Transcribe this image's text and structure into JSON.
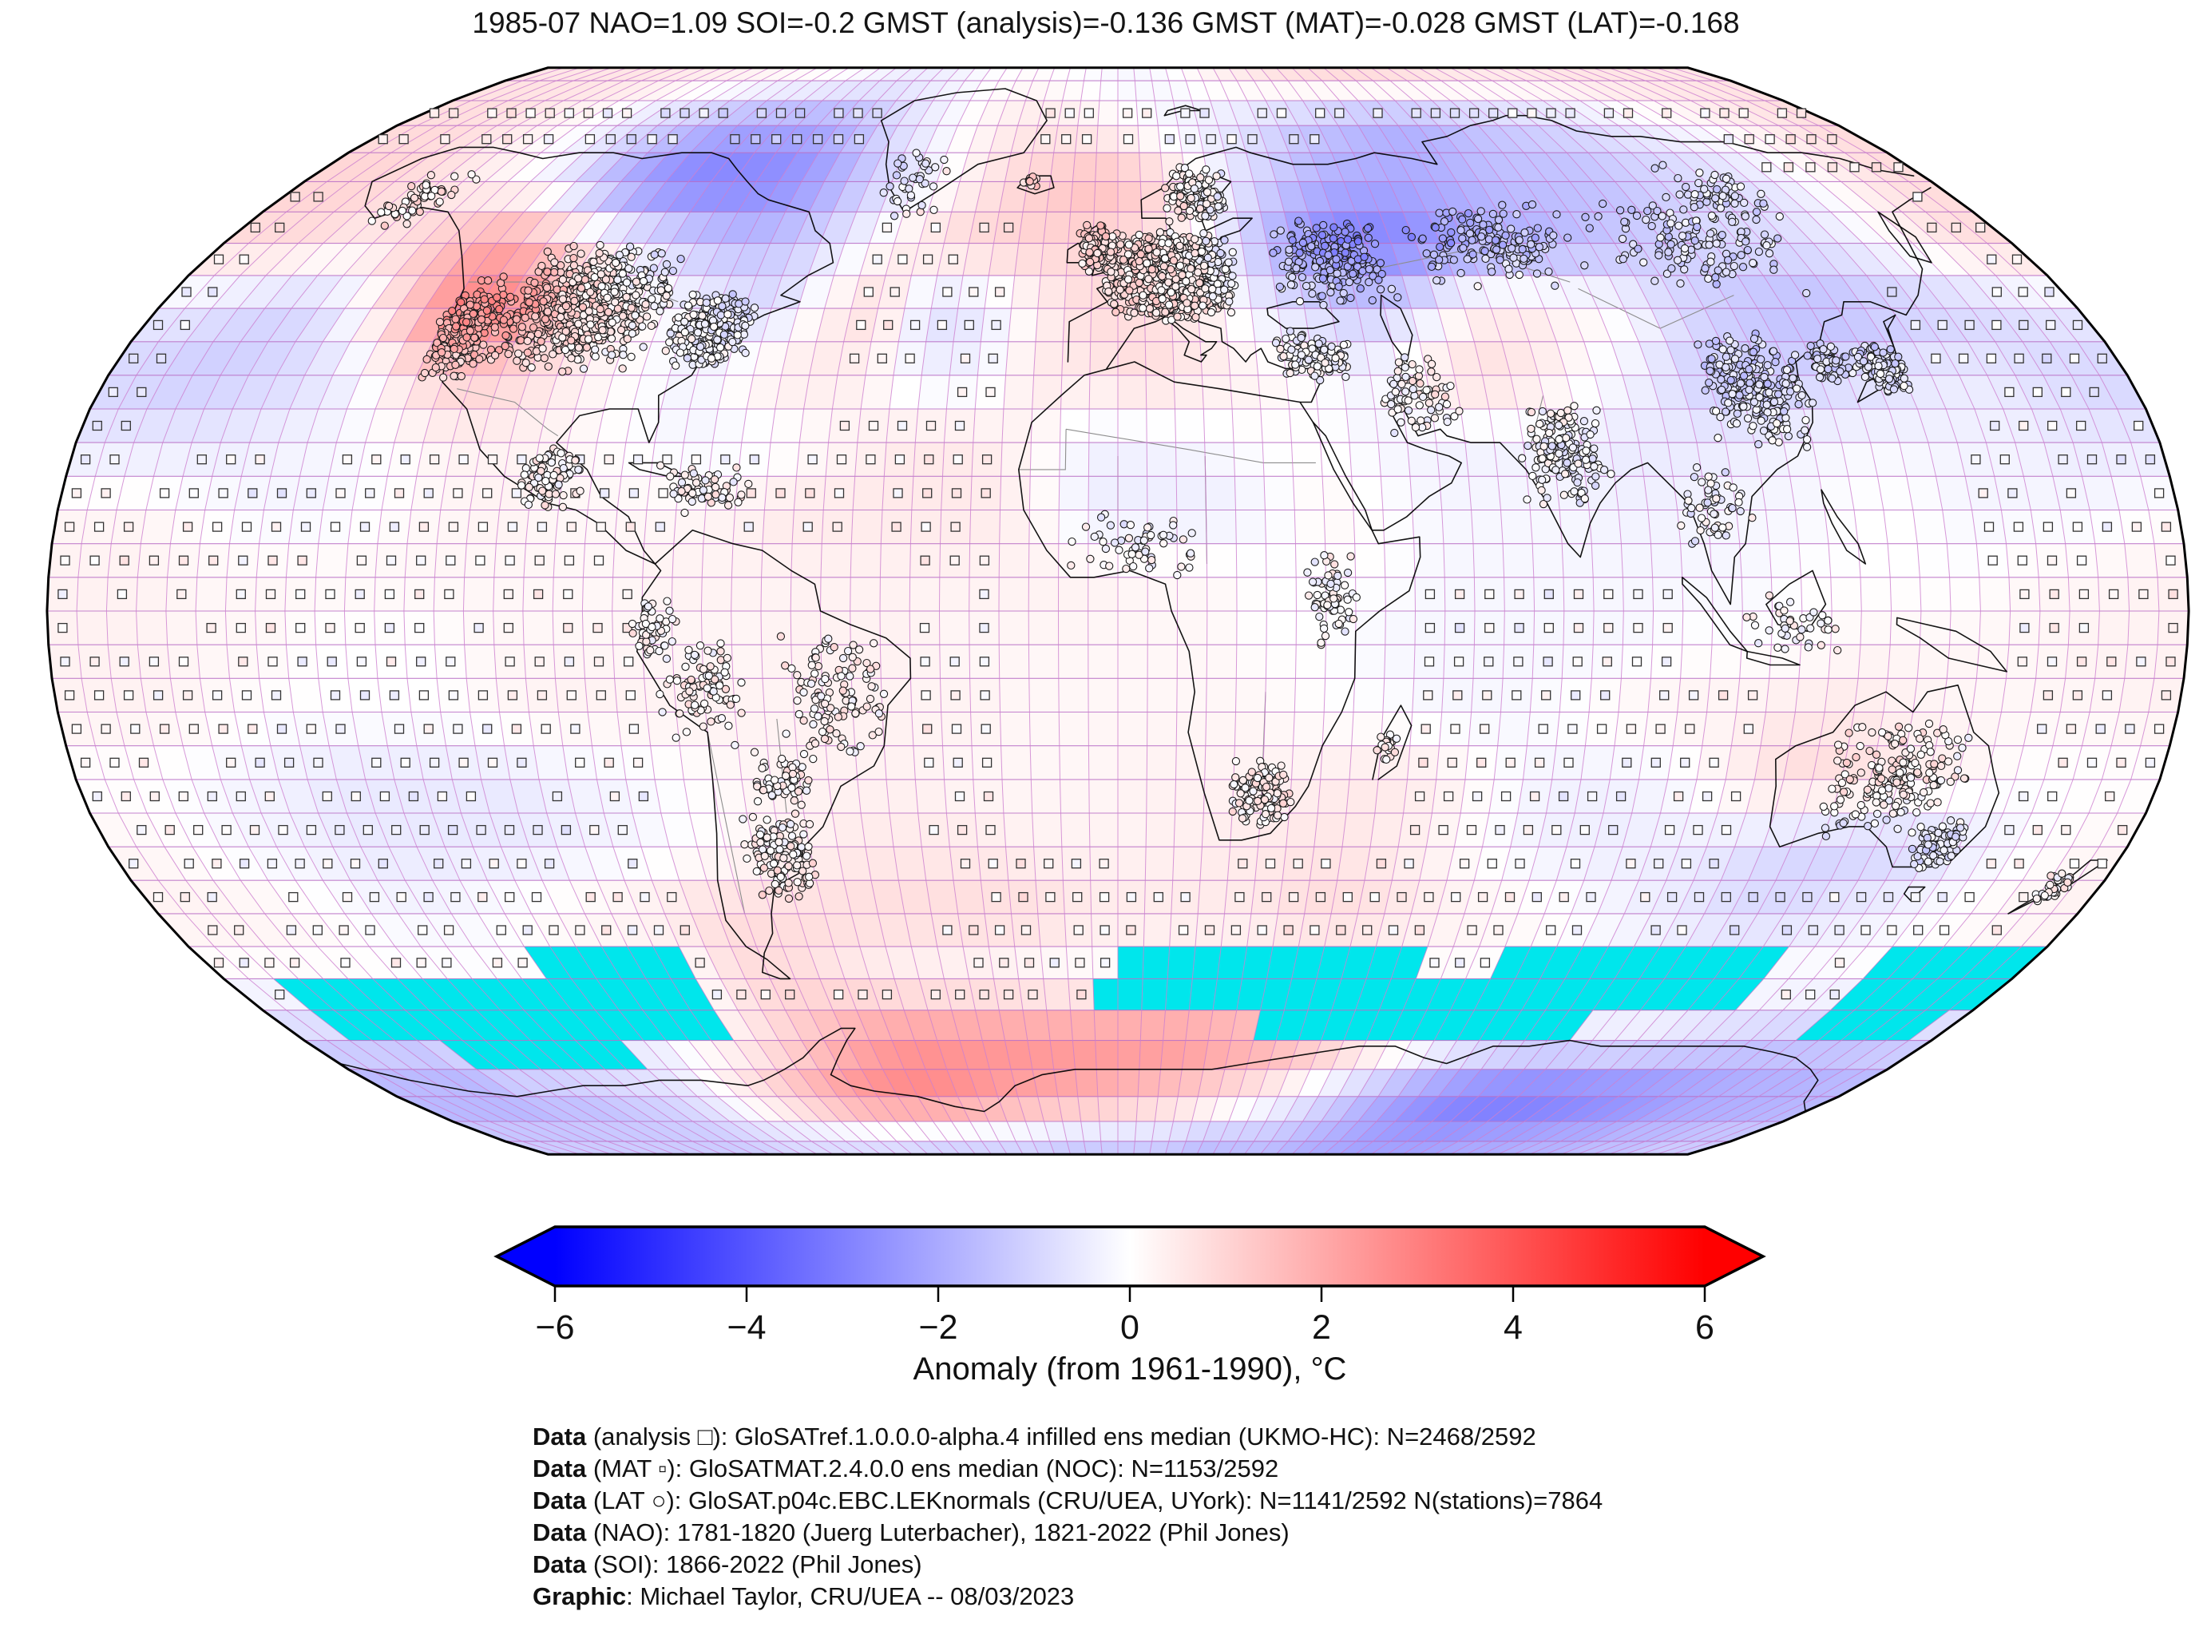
{
  "title": "1985-07 NAO=1.09 SOI=-0.2 GMST (analysis)=-0.136 GMST (MAT)=-0.028 GMST (LAT)=-0.168",
  "colorbar": {
    "min": -6,
    "max": 6,
    "label": "Anomaly (from 1961-1990), °C",
    "ticks": [
      {
        "value": -6,
        "label": "−6"
      },
      {
        "value": -4,
        "label": "−4"
      },
      {
        "value": -2,
        "label": "−2"
      },
      {
        "value": 0,
        "label": "0"
      },
      {
        "value": 2,
        "label": "2"
      },
      {
        "value": 4,
        "label": "4"
      },
      {
        "value": 6,
        "label": "6"
      }
    ],
    "colors": {
      "neg": "#0000ff",
      "mid": "#ffffff",
      "pos": "#ff0000"
    },
    "missing_color": "#00e6ec"
  },
  "footer": {
    "lines": [
      {
        "bold": "Data",
        "text": " (analysis □): GloSATref.1.0.0.0-alpha.4 infilled ens median (UKMO-HC): N=2468/2592"
      },
      {
        "bold": "Data",
        "text": " (MAT ▫): GloSATMAT.2.4.0.0 ens median (NOC): N=1153/2592"
      },
      {
        "bold": "Data",
        "text": " (LAT ○): GloSAT.p04c.EBC.LEKnormals (CRU/UEA, UYork): N=1141/2592 N(stations)=7864"
      },
      {
        "bold": "Data",
        "text": " (NAO): 1781-1820 (Juerg Luterbacher), 1821-2022 (Phil Jones)"
      },
      {
        "bold": "Data",
        "text": " (SOI): 1866-2022 (Phil Jones)"
      },
      {
        "bold": "Graphic",
        "text": ": Michael Taylor, CRU/UEA -- 08/03/2023"
      }
    ]
  },
  "chart_data": {
    "type": "heatmap",
    "projection": "robinson",
    "period": "1985-07",
    "indices": {
      "NAO": 1.09,
      "SOI": -0.2,
      "GMST_analysis": -0.136,
      "GMST_MAT": -0.028,
      "GMST_LAT": -0.168
    },
    "units": "degC anomaly from 1961-1990",
    "grid_deg": 10,
    "lat_centers": [
      85,
      75,
      65,
      55,
      45,
      35,
      25,
      15,
      5,
      -5,
      -15,
      -25,
      -35,
      -45,
      -55,
      -65,
      -75,
      -85
    ],
    "lon_centers": [
      -175,
      -165,
      -155,
      -145,
      -135,
      -125,
      -115,
      -105,
      -95,
      -85,
      -75,
      -65,
      -55,
      -45,
      -35,
      -25,
      -15,
      -5,
      5,
      15,
      25,
      35,
      45,
      55,
      65,
      75,
      85,
      95,
      105,
      115,
      125,
      135,
      145,
      155,
      165,
      175
    ],
    "anomaly_c": [
      [
        0.6,
        0.6,
        0.6,
        0.6,
        0.5,
        0.4,
        0.3,
        0.2,
        0.1,
        0,
        -0.2,
        -0.4,
        -0.4,
        -0.2,
        0,
        0.1,
        0,
        -0.1,
        -0.2,
        -0.1,
        0.2,
        0.4,
        0.6,
        0.7,
        0.8,
        0.8,
        0.7,
        0.6,
        0.5,
        0.5,
        0.5,
        0.6,
        0.6,
        0.6,
        0.6,
        0.6
      ],
      [
        0.8,
        0.8,
        0.6,
        0.3,
        0,
        -0.5,
        -1,
        -1.5,
        -2,
        -2,
        -2,
        -1.5,
        -0.8,
        -0.3,
        0.2,
        0.5,
        0.5,
        0.3,
        0,
        -0.3,
        -0.5,
        -0.8,
        -1.2,
        -1.5,
        -1.8,
        -1.8,
        -1.5,
        -1.2,
        -1,
        -0.8,
        -0.5,
        -0.2,
        0,
        0.3,
        0.5,
        0.8
      ],
      [
        1,
        1,
        0.8,
        0.5,
        0.2,
        -0.3,
        -1.5,
        -2.5,
        -3,
        -3,
        -2.8,
        -2.2,
        -1.2,
        -0.5,
        0.2,
        0.8,
        1.2,
        1.5,
        1.2,
        0.5,
        -0.5,
        -1.2,
        -1.8,
        -2,
        -2,
        -1.8,
        -1.5,
        -1.5,
        -1.5,
        -1.2,
        -1,
        -0.8,
        -0.5,
        0,
        0.5,
        0.8
      ],
      [
        0.8,
        0.8,
        0.5,
        0.8,
        1.5,
        2.2,
        1.5,
        0.3,
        -0.5,
        -1.2,
        -1.5,
        -1.2,
        -0.5,
        0.3,
        0.8,
        1,
        1,
        1,
        0.8,
        0.2,
        -1,
        -2.2,
        -3,
        -3,
        -2.5,
        -2,
        -1.8,
        -1.5,
        -1.2,
        -1,
        -0.8,
        -0.8,
        -0.5,
        0,
        0.5,
        0.8
      ],
      [
        -0.5,
        -0.8,
        -1,
        -0.5,
        1,
        2.8,
        3,
        1.5,
        0.5,
        0,
        -0.5,
        -0.8,
        0.3,
        0.8,
        -0.8,
        -0.5,
        0.3,
        0.8,
        0.8,
        0.5,
        -0.3,
        -0.8,
        -1.2,
        -0.8,
        0.3,
        0.5,
        0.3,
        0,
        -0.8,
        -1.2,
        -1.5,
        -1.5,
        -1.2,
        -1,
        -0.8,
        -0.5
      ],
      [
        -1,
        -1.2,
        -1,
        -0.8,
        -0.3,
        0.8,
        1.2,
        0.8,
        0.3,
        0,
        -0.3,
        0.3,
        0.5,
        0.3,
        -0.3,
        -0.3,
        0.5,
        0.5,
        0.8,
        0.5,
        0.3,
        0,
        -0.3,
        0.5,
        0.8,
        0.5,
        0,
        -0.5,
        -1.2,
        -1.2,
        -1,
        -0.8,
        -0.5,
        -0.5,
        -0.8,
        -1
      ],
      [
        -0.5,
        -0.5,
        -0.5,
        -0.3,
        -0.2,
        0,
        0.3,
        0.3,
        0.2,
        0,
        -0.2,
        -0.2,
        0,
        0.3,
        0.5,
        0.5,
        0.2,
        -0.3,
        -0.3,
        -0.2,
        0,
        0,
        -0.2,
        -0.3,
        -0.3,
        -0.3,
        -0.5,
        -0.5,
        -0.5,
        -0.3,
        -0.2,
        -0.2,
        -0.3,
        -0.3,
        -0.5,
        -0.5
      ],
      [
        0.2,
        0.2,
        0,
        -0.2,
        -0.2,
        0,
        0.2,
        0.3,
        0.2,
        0.2,
        0.2,
        0.3,
        0.5,
        0.5,
        0.5,
        0.5,
        0.3,
        -0.4,
        -0.4,
        -0.4,
        -0.2,
        0.2,
        0,
        -0.2,
        -0.2,
        -0.2,
        -0.3,
        -0.3,
        -0.2,
        -0.2,
        0,
        0,
        -0.2,
        -0.2,
        -0.2,
        0
      ],
      [
        0.3,
        0.3,
        0.2,
        0.2,
        0.2,
        0.2,
        0.2,
        0.2,
        0.2,
        0.2,
        0.3,
        0.3,
        0.3,
        0.3,
        0.3,
        0.3,
        0.3,
        0.3,
        0.2,
        0.2,
        0,
        0,
        0,
        -0.2,
        -0.2,
        -0.2,
        -0.2,
        -0.2,
        -0.2,
        0,
        0,
        0,
        0,
        0.2,
        0.2,
        0.3
      ],
      [
        0.3,
        0.3,
        0.2,
        0.2,
        0,
        0,
        0,
        0.2,
        0.2,
        0.2,
        0.2,
        0.2,
        0.3,
        0.3,
        0.3,
        0.2,
        0.2,
        0.2,
        0.2,
        0.2,
        0,
        0,
        -0.2,
        -0.2,
        -0.2,
        -0.2,
        -0.2,
        0,
        0,
        0,
        0.2,
        0.2,
        0.2,
        0.2,
        0.3,
        0.3
      ],
      [
        0.3,
        0.3,
        0.2,
        0,
        0,
        0,
        0,
        0.2,
        0.3,
        0.3,
        0.3,
        0.3,
        0.3,
        0.3,
        0.3,
        0.3,
        0.2,
        0.2,
        0.2,
        0.2,
        0.2,
        0,
        0,
        -0.2,
        -0.2,
        0,
        0.2,
        0.3,
        0.3,
        0.5,
        0.5,
        0.3,
        0.2,
        0.2,
        0.2,
        0.3
      ],
      [
        0,
        0,
        -0.2,
        -0.3,
        -0.5,
        -0.5,
        -0.5,
        -0.5,
        -0.3,
        -0.2,
        0,
        0.2,
        0.3,
        0.3,
        0.3,
        0.2,
        0.2,
        0.2,
        0.3,
        0.3,
        0.3,
        0.4,
        0.5,
        0.4,
        0,
        -0.3,
        -0.3,
        -0.2,
        0.3,
        0.8,
        0.8,
        0.5,
        0.3,
        0,
        0,
        0
      ],
      [
        0.2,
        0,
        -0.2,
        -0.3,
        -0.5,
        -0.5,
        -0.5,
        -0.5,
        -0.3,
        -0.2,
        0,
        0.2,
        0.3,
        0.5,
        0.5,
        0.5,
        0.3,
        0.3,
        0.3,
        0.4,
        0.5,
        0.6,
        0.5,
        0.3,
        0,
        -0.3,
        -0.4,
        -0.4,
        -0.5,
        -0.8,
        -1,
        -1,
        -0.8,
        -0.3,
        0,
        0.2
      ],
      [
        0.3,
        0.3,
        0.2,
        0,
        -0.2,
        -0.2,
        0,
        0.2,
        0.3,
        0.5,
        0.8,
        0.8,
        0.8,
        0.8,
        0.8,
        0.8,
        0.8,
        0.5,
        0.5,
        0.5,
        0.5,
        0.8,
        0.8,
        0.5,
        0.3,
        0.2,
        0,
        -0.3,
        -0.5,
        -0.8,
        -0.8,
        -0.5,
        -0.3,
        0,
        0.2,
        0.3
      ],
      [
        0,
        null,
        null,
        null,
        null,
        null,
        null,
        null,
        null,
        null,
        0.8,
        0.8,
        0.5,
        0.3,
        0.2,
        0.2,
        0,
        0,
        null,
        null,
        null,
        null,
        null,
        null,
        0,
        null,
        null,
        null,
        null,
        null,
        null,
        0,
        0,
        null,
        null,
        null
      ],
      [
        -1,
        -1,
        -1.2,
        null,
        null,
        null,
        null,
        -0.5,
        0,
        0.3,
        0.8,
        1.5,
        2.2,
        2.5,
        2.5,
        2.5,
        2.5,
        2.5,
        2.5,
        2.5,
        2.2,
        2,
        1.5,
        1,
        0.5,
        0,
        -0.3,
        -0.5,
        -0.5,
        -0.5,
        -0.8,
        -1,
        -1.2,
        -1.2,
        -1.2,
        -1
      ],
      [
        -1.8,
        -1.8,
        -1.8,
        -1.5,
        -1.5,
        -1.2,
        -1,
        -0.5,
        0.3,
        1,
        1.8,
        2.5,
        2.8,
        2.8,
        2.5,
        2.2,
        2,
        1.8,
        1.5,
        1.2,
        0.8,
        0.3,
        -0.3,
        -1,
        -1.8,
        -2.5,
        -3,
        -3.2,
        -3.2,
        -3,
        -2.8,
        -2.5,
        -2.2,
        -2,
        -2,
        -1.8
      ],
      [
        -1.2,
        -1.2,
        -1.2,
        -1.2,
        -1.2,
        -1.2,
        -1.2,
        -1,
        -0.8,
        -0.8,
        -0.8,
        -0.8,
        -1,
        -1,
        -1,
        -1,
        -1.2,
        -1.2,
        -1.2,
        -1.2,
        -1.5,
        -1.5,
        -1.5,
        -1.8,
        -2,
        -2.2,
        -2.2,
        -2.2,
        -2,
        -2,
        -1.8,
        -1.8,
        -1.5,
        -1.5,
        -1.2,
        -1.2
      ]
    ],
    "missing_cells_cyan": [
      [
        -115,
        -85,
        -55,
        -50
      ],
      [
        -170,
        -85,
        -65,
        -55
      ],
      [
        -150,
        -110,
        -70,
        -65
      ],
      [
        0,
        60,
        -55,
        -50
      ],
      [
        75,
        130,
        -55,
        -50
      ],
      [
        -5,
        130,
        -60,
        -55
      ],
      [
        30,
        100,
        -65,
        -60
      ],
      [
        150,
        180,
        -60,
        -50
      ],
      [
        150,
        175,
        -65,
        -60
      ]
    ],
    "station_clusters": [
      [
        -100,
        45,
        16,
        10,
        700
      ],
      [
        -120,
        42,
        6,
        8,
        250
      ],
      [
        -75,
        42,
        8,
        6,
        300
      ],
      [
        -150,
        62,
        8,
        5,
        60
      ],
      [
        -97,
        20,
        6,
        5,
        90
      ],
      [
        -70,
        18,
        9,
        4,
        60
      ],
      [
        -70,
        -12,
        8,
        8,
        90
      ],
      [
        -48,
        -12,
        10,
        10,
        120
      ],
      [
        -61,
        -36,
        7,
        7,
        130
      ],
      [
        10,
        50,
        13,
        7,
        1100
      ],
      [
        17,
        63,
        7,
        5,
        170
      ],
      [
        -4,
        54,
        4,
        4,
        150
      ],
      [
        42,
        52,
        12,
        7,
        220
      ],
      [
        75,
        55,
        18,
        7,
        160
      ],
      [
        115,
        55,
        20,
        8,
        130
      ],
      [
        130,
        62,
        12,
        6,
        60
      ],
      [
        35,
        38,
        7,
        4,
        110
      ],
      [
        52,
        32,
        8,
        6,
        80
      ],
      [
        77,
        23,
        8,
        8,
        170
      ],
      [
        101,
        15,
        7,
        7,
        60
      ],
      [
        113,
        33,
        10,
        9,
        260
      ],
      [
        128,
        37,
        4,
        3,
        70
      ],
      [
        137,
        36,
        5,
        4,
        130
      ],
      [
        -45,
        65,
        7,
        6,
        40
      ],
      [
        -19,
        65,
        2,
        1,
        15
      ],
      [
        3,
        10,
        12,
        5,
        60
      ],
      [
        36,
        2,
        5,
        8,
        70
      ],
      [
        25,
        -27,
        6,
        5,
        130
      ],
      [
        46,
        -20,
        2,
        3,
        20
      ],
      [
        134,
        -25,
        13,
        9,
        200
      ],
      [
        146,
        -35,
        5,
        4,
        90
      ],
      [
        172,
        -41,
        3,
        3,
        40
      ],
      [
        113,
        -2,
        10,
        5,
        40
      ],
      [
        -78,
        -2,
        4,
        6,
        50
      ],
      [
        -58,
        -25,
        6,
        5,
        60
      ]
    ],
    "markers": {
      "analysis": "large open square (filled grid cell)",
      "MAT": "small open square",
      "LAT": "open circle"
    }
  }
}
